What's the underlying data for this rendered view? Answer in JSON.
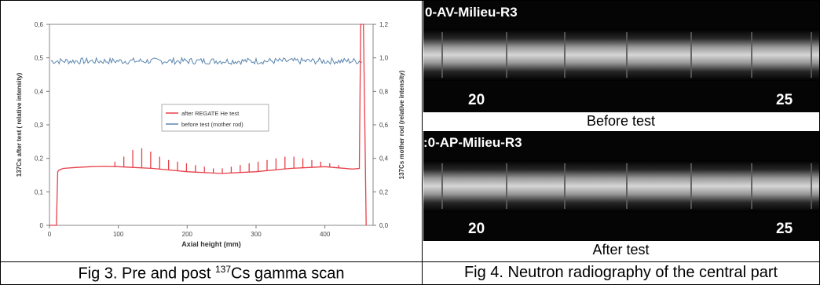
{
  "captions": {
    "fig3_pre": "Fig 3. Pre and post ",
    "fig3_sup": "137",
    "fig3_post": "Cs gamma scan",
    "fig4": "Fig 4. Neutron radiography of the central part"
  },
  "radiography": {
    "before": {
      "label": "0-AV-Milieu-R3",
      "num_left": "20",
      "num_right": "25",
      "caption": "Before test"
    },
    "after": {
      "label": ":0-AP-Milieu-R3",
      "num_left": "20",
      "num_right": "25",
      "caption": "After test"
    }
  },
  "chart_data": {
    "type": "line",
    "xlabel": "Axial height (mm)",
    "ylabel_left": "137Cs after test ( relative intensity)",
    "ylabel_right": "137Cs mother rod (relative intensity)",
    "xlim": [
      0,
      470
    ],
    "ylim_left": [
      0,
      0.6
    ],
    "ylim_right": [
      0,
      1.2
    ],
    "x_ticks": [
      "0",
      "100",
      "200",
      "300",
      "400"
    ],
    "y_ticks_left": [
      "0",
      "0,1",
      "0,2",
      "0,3",
      "0,4",
      "0,5",
      "0,6"
    ],
    "y_ticks_right": [
      "0,0",
      "0,2",
      "0,4",
      "0,6",
      "0,8",
      "1,0",
      "1,2"
    ],
    "legend_position": "center",
    "series": [
      {
        "name": "after REGATE He test",
        "color": "#e8404a",
        "axis": "left",
        "x": [
          0,
          10,
          12,
          14,
          20,
          40,
          60,
          80,
          100,
          150,
          200,
          250,
          300,
          350,
          400,
          440,
          450,
          452,
          456,
          458,
          460
        ],
        "y": [
          0,
          0,
          0.16,
          0.165,
          0.17,
          0.173,
          0.175,
          0.176,
          0.175,
          0.17,
          0.16,
          0.155,
          0.16,
          0.17,
          0.175,
          0.168,
          0.17,
          0.6,
          0.6,
          0.3,
          0
        ],
        "spikes": {
          "x": [
            95,
            108,
            121,
            134,
            147,
            160,
            173,
            186,
            199,
            212,
            225,
            238,
            251,
            264,
            277,
            290,
            303,
            316,
            329,
            342,
            355,
            368,
            381,
            394,
            407,
            420
          ],
          "y": [
            0.19,
            0.205,
            0.225,
            0.23,
            0.22,
            0.205,
            0.195,
            0.19,
            0.185,
            0.18,
            0.175,
            0.17,
            0.17,
            0.175,
            0.18,
            0.185,
            0.19,
            0.195,
            0.2,
            0.205,
            0.205,
            0.2,
            0.195,
            0.19,
            0.185,
            0.18
          ]
        }
      },
      {
        "name": "before test (mother rod)",
        "color": "#5a86b0",
        "axis": "right",
        "x_start": 2,
        "x_end": 455,
        "mean": 0.97,
        "range": [
          0.93,
          1.0
        ]
      }
    ]
  }
}
